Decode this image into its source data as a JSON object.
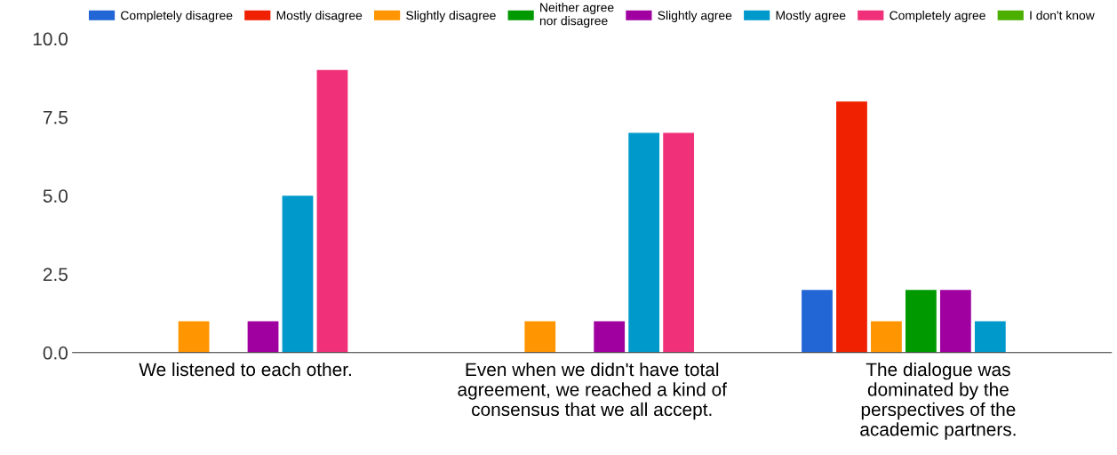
{
  "chart_data": {
    "type": "bar",
    "categories": [
      "We listened to each other.",
      "Even when we didn't have total\nagreement, we reached a kind of\nconsensus that we all accept.",
      "The dialogue was\ndominated by the\nperspectives of the\nacademic partners."
    ],
    "series": [
      {
        "name": "Completely disagree",
        "color": "#2266d6",
        "values": [
          0,
          0,
          2
        ]
      },
      {
        "name": "Mostly disagree",
        "color": "#f02100",
        "values": [
          0,
          0,
          8
        ]
      },
      {
        "name": "Slightly disagree",
        "color": "#ff9500",
        "values": [
          1,
          1,
          1
        ]
      },
      {
        "name": "Neither agree\nnor disagree",
        "color": "#009a00",
        "values": [
          0,
          0,
          2
        ]
      },
      {
        "name": "Slightly agree",
        "color": "#a000a0",
        "values": [
          1,
          1,
          2
        ]
      },
      {
        "name": "Mostly agree",
        "color": "#0099cc",
        "values": [
          5,
          7,
          1
        ]
      },
      {
        "name": "Completely agree",
        "color": "#f03078",
        "values": [
          9,
          7,
          0
        ]
      },
      {
        "name": "I don't know",
        "color": "#4caf00",
        "values": [
          0,
          0,
          0
        ]
      }
    ],
    "ylim": [
      0,
      10
    ],
    "yticks": [
      {
        "value": 0,
        "label": "0.0"
      },
      {
        "value": 2.5,
        "label": "2.5"
      },
      {
        "value": 5,
        "label": "5.0"
      },
      {
        "value": 7.5,
        "label": "7.5"
      },
      {
        "value": 10,
        "label": "10.0"
      }
    ],
    "grid": false,
    "legend": "top"
  }
}
